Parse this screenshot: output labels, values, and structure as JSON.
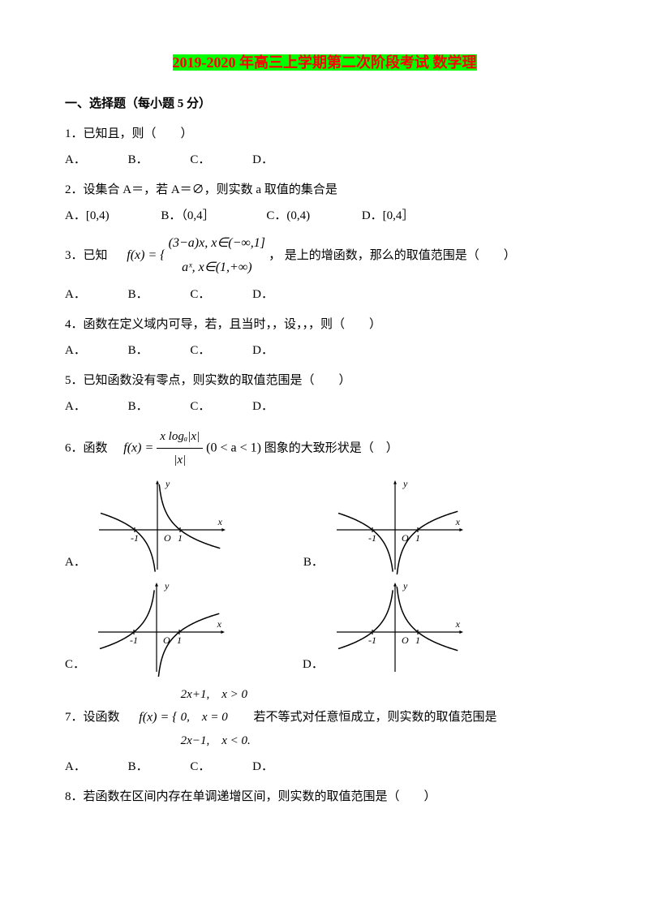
{
  "title_hl": "2019-2020 年高三上学期第二次阶段考试 数学理",
  "section1": "一、选择题（每小题 5 分）",
  "q1": "1．已知且，则（　　）",
  "q1_choices": [
    "A．",
    "B．",
    "C．",
    "D．"
  ],
  "q2": "2．设集合 A＝，若 A＝∅，则实数 a 取值的集合是",
  "q2_choices": [
    "A．[0,4)",
    "B．（0,4］",
    "C．(0,4)",
    "D．[0,4］"
  ],
  "q3_pre": "3．已知",
  "q3_math_top": "(3−a)x, x∈(−∞,1]",
  "q3_math_bot": "aˣ, x∈(1,+∞)",
  "q3_fx": "f(x) = {",
  "q3_comma": "，",
  "q3_post": "是上的增函数，那么的取值范围是（　　）",
  "q3_choices": [
    "A．",
    "B．",
    "C．",
    "D．"
  ],
  "q4": "4．函数在定义域内可导，若，且当时，，设，，，则（　　）",
  "q4_choices": [
    "A．",
    "B．",
    "C．",
    "D．"
  ],
  "q5": "5．已知函数没有零点，则实数的取值范围是（　　）",
  "q5_choices": [
    "A．",
    "B．",
    "C．",
    "D．"
  ],
  "q6_pre": "6．函数",
  "q6_fx": "f(x) =",
  "q6_num": "x logₐ|x|",
  "q6_den": "|x|",
  "q6_cond": "(0 < a < 1)",
  "q6_post": "图象的大致形状是（　）",
  "q6_optA": "A．",
  "q6_optB": "B．",
  "q6_optC": "C．",
  "q6_optD": "D．",
  "q7_pre": "7．设函数",
  "q7_fx": "f(x) = {",
  "q7_l1": "2x+1,　x > 0",
  "q7_l2": "0,　x = 0",
  "q7_l3": "2x−1,　x < 0.",
  "q7_post": "若不等式对任意恒成立，则实数的取值范围是",
  "q7_choices": [
    "A．",
    "B．",
    "C．",
    "D．"
  ],
  "q8": "8．若函数在区间内存在单调递增区间，则实数的取值范围是（　　）",
  "graph": {
    "axis_color": "#000000",
    "curve_color": "#000000",
    "axis_width": 1.2,
    "curve_width": 1.5,
    "label_x": "x",
    "label_y": "y",
    "tick_neg1": "-1",
    "tick_zero": "O",
    "tick_pos1": "1",
    "label_fontsize": 12,
    "width": 170,
    "height": 120
  }
}
